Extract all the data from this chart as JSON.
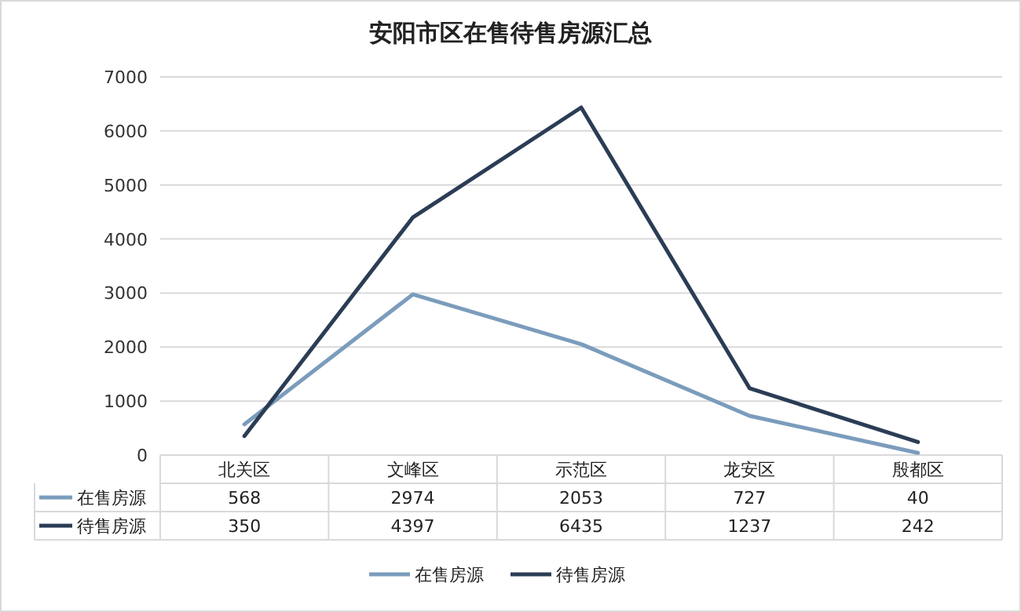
{
  "chart_data": {
    "type": "line",
    "title": "安阳市区在售待售房源汇总",
    "categories": [
      "北关区",
      "文峰区",
      "示范区",
      "龙安区",
      "殷都区"
    ],
    "series": [
      {
        "name": "在售房源",
        "color": "#7b9cbc",
        "values": [
          568,
          2974,
          2053,
          727,
          40
        ]
      },
      {
        "name": "待售房源",
        "color": "#2b3d55",
        "values": [
          350,
          4397,
          6435,
          1237,
          242
        ]
      }
    ],
    "ylim": [
      0,
      7000
    ],
    "yticks": [
      0,
      1000,
      2000,
      3000,
      4000,
      5000,
      6000,
      7000
    ],
    "grid": "y",
    "data_labels": true,
    "legend": "bottom",
    "marker": "none",
    "line_style": "solid"
  }
}
